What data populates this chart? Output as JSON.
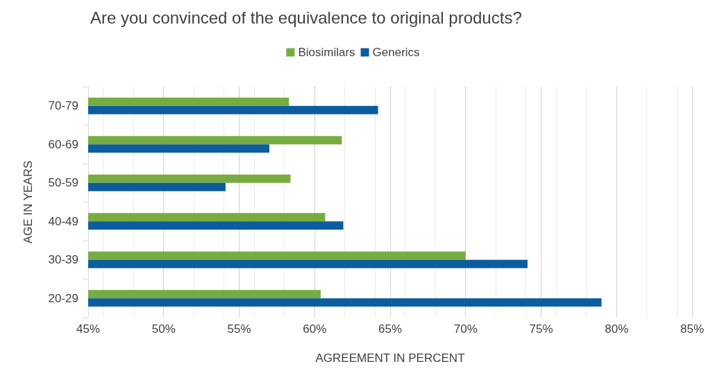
{
  "chart_data": {
    "type": "bar",
    "orientation": "horizontal",
    "title": "Are you convinced of the equivalence to original products?",
    "xlabel": "AGREEMENT IN PERCENT",
    "ylabel": "AGE IN YEARS",
    "categories": [
      "70-79",
      "60-69",
      "50-59",
      "40-49",
      "30-39",
      "20-29"
    ],
    "series": [
      {
        "name": "Biosimilars",
        "color": "#77ac41",
        "values": [
          58.3,
          61.8,
          58.4,
          60.7,
          70.0,
          60.4
        ]
      },
      {
        "name": "Generics",
        "color": "#0b5d9e",
        "values": [
          64.2,
          57.0,
          54.1,
          61.9,
          74.1,
          79.0
        ]
      }
    ],
    "xlim": [
      45,
      85
    ],
    "xticks": [
      {
        "value": 45,
        "label": "45%"
      },
      {
        "value": 50,
        "label": "50%"
      },
      {
        "value": 55,
        "label": "55%"
      },
      {
        "value": 60,
        "label": "60%"
      },
      {
        "value": 65,
        "label": "65%"
      },
      {
        "value": 70,
        "label": "70%"
      },
      {
        "value": 75,
        "label": "75%"
      },
      {
        "value": 80,
        "label": "80%"
      },
      {
        "value": 85,
        "label": "85%"
      }
    ],
    "grid": "x",
    "legend": "top"
  }
}
